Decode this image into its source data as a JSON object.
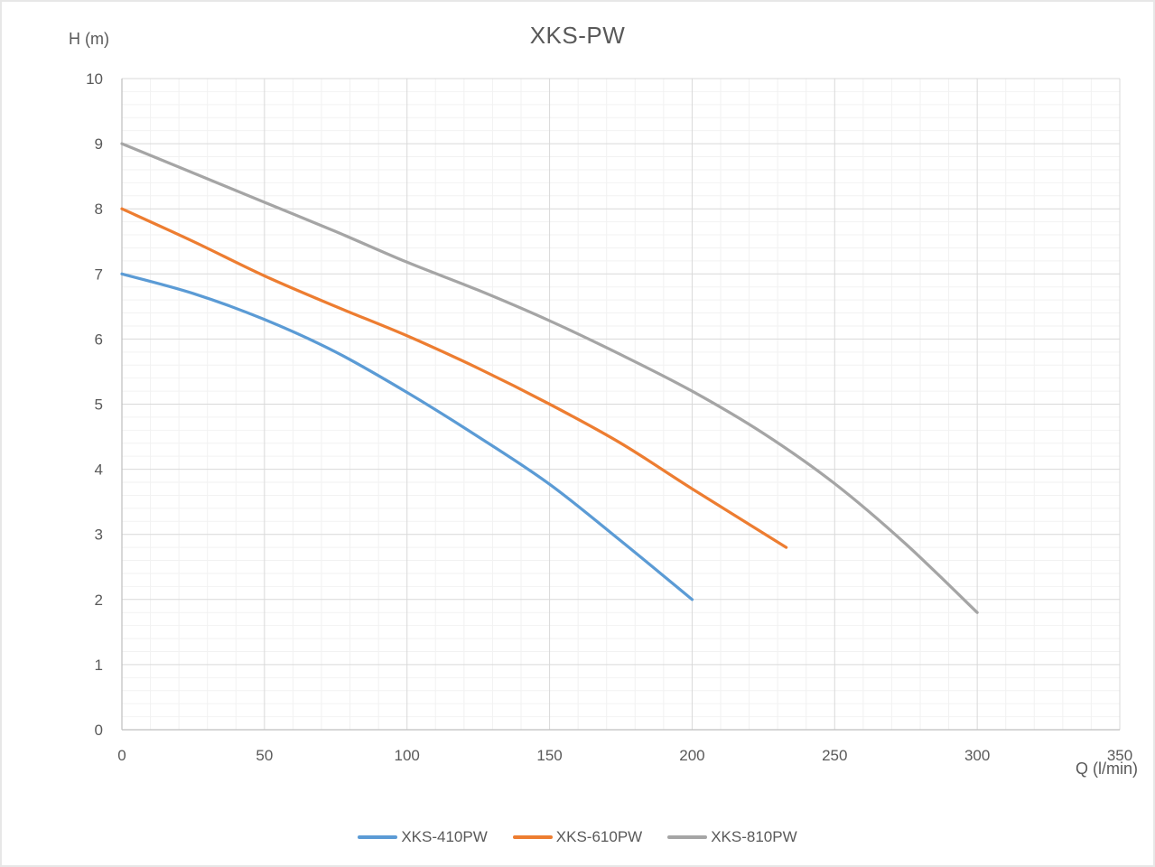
{
  "chart_data": {
    "type": "line",
    "title": "XKS-PW",
    "xlabel": "Q (l/min)",
    "ylabel": "H (m)",
    "xlim": [
      0,
      350
    ],
    "ylim": [
      0,
      10
    ],
    "x_major_ticks": [
      0,
      50,
      100,
      150,
      200,
      250,
      300,
      350
    ],
    "y_major_ticks": [
      0,
      1,
      2,
      3,
      4,
      5,
      6,
      7,
      8,
      9,
      10
    ],
    "x_minor_step": 10,
    "y_minor_step": 0.2,
    "grid": "major and minor gridlines on",
    "legend_position": "bottom-center",
    "series": [
      {
        "name": "XKS-410PW",
        "color": "#5B9BD5",
        "points": [
          [
            0,
            7.0
          ],
          [
            25,
            6.7
          ],
          [
            50,
            6.3
          ],
          [
            75,
            5.8
          ],
          [
            100,
            5.18
          ],
          [
            125,
            4.5
          ],
          [
            150,
            3.77
          ],
          [
            175,
            2.9
          ],
          [
            200,
            2.0
          ]
        ]
      },
      {
        "name": "XKS-610PW",
        "color": "#ED7D31",
        "points": [
          [
            0,
            8.0
          ],
          [
            25,
            7.5
          ],
          [
            50,
            6.97
          ],
          [
            75,
            6.5
          ],
          [
            100,
            6.05
          ],
          [
            125,
            5.55
          ],
          [
            150,
            5.0
          ],
          [
            175,
            4.4
          ],
          [
            200,
            3.7
          ],
          [
            233,
            2.8
          ]
        ]
      },
      {
        "name": "XKS-810PW",
        "color": "#A5A5A5",
        "points": [
          [
            0,
            9.0
          ],
          [
            25,
            8.55
          ],
          [
            50,
            8.1
          ],
          [
            75,
            7.65
          ],
          [
            100,
            7.18
          ],
          [
            125,
            6.75
          ],
          [
            150,
            6.28
          ],
          [
            175,
            5.76
          ],
          [
            200,
            5.2
          ],
          [
            225,
            4.55
          ],
          [
            250,
            3.78
          ],
          [
            275,
            2.85
          ],
          [
            300,
            1.8
          ]
        ]
      }
    ],
    "colors": {
      "text": "#595959",
      "grid_major": "#D9D9D9",
      "grid_minor": "#F2F2F2",
      "axis": "#BFBFBF"
    }
  }
}
